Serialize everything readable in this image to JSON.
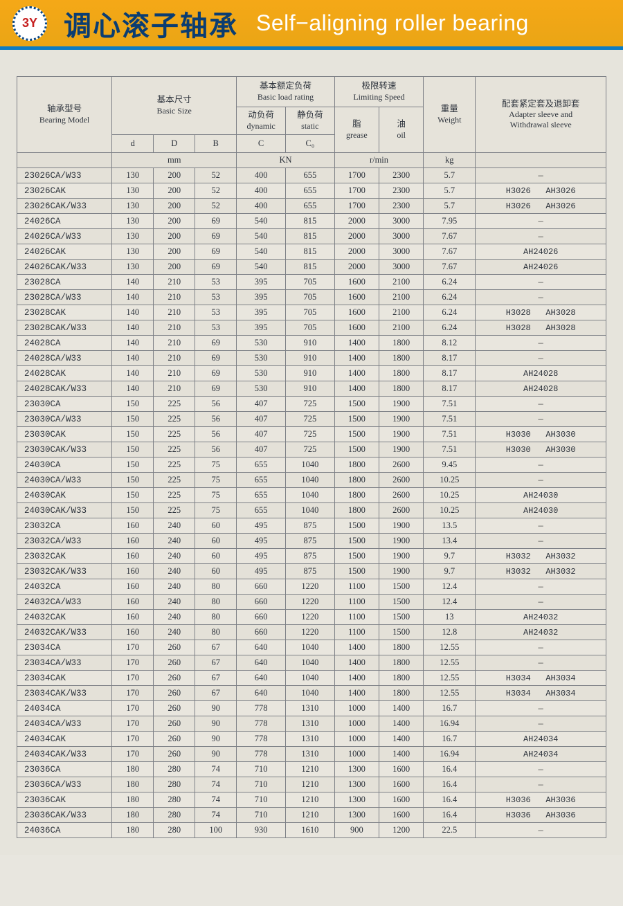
{
  "header": {
    "logo_text": "3Y",
    "title_cn": "调心滚子轴承",
    "title_en": "Self−aligning roller bearing"
  },
  "colors": {
    "header_bg": "#f5a817",
    "header_border": "#0b7cc4",
    "title_cn_color": "#0a3d72",
    "title_en_color": "#ffffff",
    "page_bg": "#e6e4dc",
    "border": "#7d8086",
    "text": "#2d333c"
  },
  "columns": {
    "model_cn": "轴承型号",
    "model_en": "Bearing Model",
    "size_cn": "基本尺寸",
    "size_en": "Basic Size",
    "load_cn": "基本额定负荷",
    "load_en": "Basic load rating",
    "speed_cn": "极限转速",
    "speed_en": "Limiting Speed",
    "weight_cn": "重量",
    "weight_en": "Weight",
    "adapter_cn": "配套紧定套及退卸套",
    "adapter_en1": "Adapter sleeve and",
    "adapter_en2": "Withdrawal sleeve",
    "dyn_cn": "动负荷",
    "dyn_en": "dynamic",
    "stat_cn": "静负荷",
    "stat_en": "static",
    "grease_cn": "脂",
    "grease_en": "grease",
    "oil_cn": "油",
    "oil_en": "oil",
    "sym_d": "d",
    "sym_D": "D",
    "sym_B": "B",
    "sym_C": "C",
    "sym_C0": "C₀",
    "unit_mm": "mm",
    "unit_kn": "KN",
    "unit_rpm": "r/min",
    "unit_kg": "kg"
  },
  "rows": [
    {
      "model": "23026CA/W33",
      "d": "130",
      "D": "200",
      "B": "52",
      "C": "400",
      "C0": "655",
      "gr": "1700",
      "oil": "2300",
      "wt": "5.7",
      "ad": "—"
    },
    {
      "model": "23026CAK",
      "d": "130",
      "D": "200",
      "B": "52",
      "C": "400",
      "C0": "655",
      "gr": "1700",
      "oil": "2300",
      "wt": "5.7",
      "ad": "H3026   AH3026"
    },
    {
      "model": "23026CAK/W33",
      "d": "130",
      "D": "200",
      "B": "52",
      "C": "400",
      "C0": "655",
      "gr": "1700",
      "oil": "2300",
      "wt": "5.7",
      "ad": "H3026   AH3026"
    },
    {
      "model": "24026CA",
      "d": "130",
      "D": "200",
      "B": "69",
      "C": "540",
      "C0": "815",
      "gr": "2000",
      "oil": "3000",
      "wt": "7.95",
      "ad": "—"
    },
    {
      "model": "24026CA/W33",
      "d": "130",
      "D": "200",
      "B": "69",
      "C": "540",
      "C0": "815",
      "gr": "2000",
      "oil": "3000",
      "wt": "7.67",
      "ad": "—"
    },
    {
      "model": "24026CAK",
      "d": "130",
      "D": "200",
      "B": "69",
      "C": "540",
      "C0": "815",
      "gr": "2000",
      "oil": "3000",
      "wt": "7.67",
      "ad": "AH24026"
    },
    {
      "model": "24026CAK/W33",
      "d": "130",
      "D": "200",
      "B": "69",
      "C": "540",
      "C0": "815",
      "gr": "2000",
      "oil": "3000",
      "wt": "7.67",
      "ad": "AH24026"
    },
    {
      "model": "23028CA",
      "d": "140",
      "D": "210",
      "B": "53",
      "C": "395",
      "C0": "705",
      "gr": "1600",
      "oil": "2100",
      "wt": "6.24",
      "ad": "—"
    },
    {
      "model": "23028CA/W33",
      "d": "140",
      "D": "210",
      "B": "53",
      "C": "395",
      "C0": "705",
      "gr": "1600",
      "oil": "2100",
      "wt": "6.24",
      "ad": "—"
    },
    {
      "model": "23028CAK",
      "d": "140",
      "D": "210",
      "B": "53",
      "C": "395",
      "C0": "705",
      "gr": "1600",
      "oil": "2100",
      "wt": "6.24",
      "ad": "H3028   AH3028"
    },
    {
      "model": "23028CAK/W33",
      "d": "140",
      "D": "210",
      "B": "53",
      "C": "395",
      "C0": "705",
      "gr": "1600",
      "oil": "2100",
      "wt": "6.24",
      "ad": "H3028   AH3028"
    },
    {
      "model": "24028CA",
      "d": "140",
      "D": "210",
      "B": "69",
      "C": "530",
      "C0": "910",
      "gr": "1400",
      "oil": "1800",
      "wt": "8.12",
      "ad": "—"
    },
    {
      "model": "24028CA/W33",
      "d": "140",
      "D": "210",
      "B": "69",
      "C": "530",
      "C0": "910",
      "gr": "1400",
      "oil": "1800",
      "wt": "8.17",
      "ad": "—"
    },
    {
      "model": "24028CAK",
      "d": "140",
      "D": "210",
      "B": "69",
      "C": "530",
      "C0": "910",
      "gr": "1400",
      "oil": "1800",
      "wt": "8.17",
      "ad": "AH24028"
    },
    {
      "model": "24028CAK/W33",
      "d": "140",
      "D": "210",
      "B": "69",
      "C": "530",
      "C0": "910",
      "gr": "1400",
      "oil": "1800",
      "wt": "8.17",
      "ad": "AH24028"
    },
    {
      "model": "23030CA",
      "d": "150",
      "D": "225",
      "B": "56",
      "C": "407",
      "C0": "725",
      "gr": "1500",
      "oil": "1900",
      "wt": "7.51",
      "ad": "—"
    },
    {
      "model": "23030CA/W33",
      "d": "150",
      "D": "225",
      "B": "56",
      "C": "407",
      "C0": "725",
      "gr": "1500",
      "oil": "1900",
      "wt": "7.51",
      "ad": "—"
    },
    {
      "model": "23030CAK",
      "d": "150",
      "D": "225",
      "B": "56",
      "C": "407",
      "C0": "725",
      "gr": "1500",
      "oil": "1900",
      "wt": "7.51",
      "ad": "H3030   AH3030"
    },
    {
      "model": "23030CAK/W33",
      "d": "150",
      "D": "225",
      "B": "56",
      "C": "407",
      "C0": "725",
      "gr": "1500",
      "oil": "1900",
      "wt": "7.51",
      "ad": "H3030   AH3030"
    },
    {
      "model": "24030CA",
      "d": "150",
      "D": "225",
      "B": "75",
      "C": "655",
      "C0": "1040",
      "gr": "1800",
      "oil": "2600",
      "wt": "9.45",
      "ad": "—"
    },
    {
      "model": "24030CA/W33",
      "d": "150",
      "D": "225",
      "B": "75",
      "C": "655",
      "C0": "1040",
      "gr": "1800",
      "oil": "2600",
      "wt": "10.25",
      "ad": "—"
    },
    {
      "model": "24030CAK",
      "d": "150",
      "D": "225",
      "B": "75",
      "C": "655",
      "C0": "1040",
      "gr": "1800",
      "oil": "2600",
      "wt": "10.25",
      "ad": "AH24030"
    },
    {
      "model": "24030CAK/W33",
      "d": "150",
      "D": "225",
      "B": "75",
      "C": "655",
      "C0": "1040",
      "gr": "1800",
      "oil": "2600",
      "wt": "10.25",
      "ad": "AH24030"
    },
    {
      "model": "23032CA",
      "d": "160",
      "D": "240",
      "B": "60",
      "C": "495",
      "C0": "875",
      "gr": "1500",
      "oil": "1900",
      "wt": "13.5",
      "ad": "—"
    },
    {
      "model": "23032CA/W33",
      "d": "160",
      "D": "240",
      "B": "60",
      "C": "495",
      "C0": "875",
      "gr": "1500",
      "oil": "1900",
      "wt": "13.4",
      "ad": "—"
    },
    {
      "model": "23032CAK",
      "d": "160",
      "D": "240",
      "B": "60",
      "C": "495",
      "C0": "875",
      "gr": "1500",
      "oil": "1900",
      "wt": "9.7",
      "ad": "H3032   AH3032"
    },
    {
      "model": "23032CAK/W33",
      "d": "160",
      "D": "240",
      "B": "60",
      "C": "495",
      "C0": "875",
      "gr": "1500",
      "oil": "1900",
      "wt": "9.7",
      "ad": "H3032   AH3032"
    },
    {
      "model": "24032CA",
      "d": "160",
      "D": "240",
      "B": "80",
      "C": "660",
      "C0": "1220",
      "gr": "1100",
      "oil": "1500",
      "wt": "12.4",
      "ad": "—"
    },
    {
      "model": "24032CA/W33",
      "d": "160",
      "D": "240",
      "B": "80",
      "C": "660",
      "C0": "1220",
      "gr": "1100",
      "oil": "1500",
      "wt": "12.4",
      "ad": "—"
    },
    {
      "model": "24032CAK",
      "d": "160",
      "D": "240",
      "B": "80",
      "C": "660",
      "C0": "1220",
      "gr": "1100",
      "oil": "1500",
      "wt": "13",
      "ad": "AH24032"
    },
    {
      "model": "24032CAK/W33",
      "d": "160",
      "D": "240",
      "B": "80",
      "C": "660",
      "C0": "1220",
      "gr": "1100",
      "oil": "1500",
      "wt": "12.8",
      "ad": "AH24032"
    },
    {
      "model": "23034CA",
      "d": "170",
      "D": "260",
      "B": "67",
      "C": "640",
      "C0": "1040",
      "gr": "1400",
      "oil": "1800",
      "wt": "12.55",
      "ad": "—"
    },
    {
      "model": "23034CA/W33",
      "d": "170",
      "D": "260",
      "B": "67",
      "C": "640",
      "C0": "1040",
      "gr": "1400",
      "oil": "1800",
      "wt": "12.55",
      "ad": "—"
    },
    {
      "model": "23034CAK",
      "d": "170",
      "D": "260",
      "B": "67",
      "C": "640",
      "C0": "1040",
      "gr": "1400",
      "oil": "1800",
      "wt": "12.55",
      "ad": "H3034   AH3034"
    },
    {
      "model": "23034CAK/W33",
      "d": "170",
      "D": "260",
      "B": "67",
      "C": "640",
      "C0": "1040",
      "gr": "1400",
      "oil": "1800",
      "wt": "12.55",
      "ad": "H3034   AH3034"
    },
    {
      "model": "24034CA",
      "d": "170",
      "D": "260",
      "B": "90",
      "C": "778",
      "C0": "1310",
      "gr": "1000",
      "oil": "1400",
      "wt": "16.7",
      "ad": "—"
    },
    {
      "model": "24034CA/W33",
      "d": "170",
      "D": "260",
      "B": "90",
      "C": "778",
      "C0": "1310",
      "gr": "1000",
      "oil": "1400",
      "wt": "16.94",
      "ad": "—"
    },
    {
      "model": "24034CAK",
      "d": "170",
      "D": "260",
      "B": "90",
      "C": "778",
      "C0": "1310",
      "gr": "1000",
      "oil": "1400",
      "wt": "16.7",
      "ad": "AH24034"
    },
    {
      "model": "24034CAK/W33",
      "d": "170",
      "D": "260",
      "B": "90",
      "C": "778",
      "C0": "1310",
      "gr": "1000",
      "oil": "1400",
      "wt": "16.94",
      "ad": "AH24034"
    },
    {
      "model": "23036CA",
      "d": "180",
      "D": "280",
      "B": "74",
      "C": "710",
      "C0": "1210",
      "gr": "1300",
      "oil": "1600",
      "wt": "16.4",
      "ad": "—"
    },
    {
      "model": "23036CA/W33",
      "d": "180",
      "D": "280",
      "B": "74",
      "C": "710",
      "C0": "1210",
      "gr": "1300",
      "oil": "1600",
      "wt": "16.4",
      "ad": "—"
    },
    {
      "model": "23036CAK",
      "d": "180",
      "D": "280",
      "B": "74",
      "C": "710",
      "C0": "1210",
      "gr": "1300",
      "oil": "1600",
      "wt": "16.4",
      "ad": "H3036   AH3036"
    },
    {
      "model": "23036CAK/W33",
      "d": "180",
      "D": "280",
      "B": "74",
      "C": "710",
      "C0": "1210",
      "gr": "1300",
      "oil": "1600",
      "wt": "16.4",
      "ad": "H3036   AH3036"
    },
    {
      "model": "24036CA",
      "d": "180",
      "D": "280",
      "B": "100",
      "C": "930",
      "C0": "1610",
      "gr": "900",
      "oil": "1200",
      "wt": "22.5",
      "ad": "—"
    }
  ]
}
